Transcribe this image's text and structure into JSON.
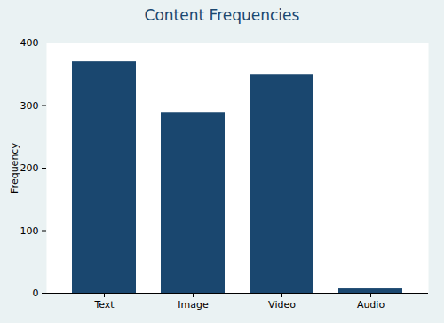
{
  "chart_data": {
    "type": "bar",
    "title": "Content Frequencies",
    "y_label": "Frequency",
    "categories": [
      "Text",
      "Image",
      "Video",
      "Audio"
    ],
    "values": [
      370,
      289,
      350,
      7
    ],
    "color": "#1a476f",
    "ylim": [
      0,
      400
    ],
    "yticks": [
      0,
      100,
      200,
      300,
      400
    ],
    "grid": false
  }
}
